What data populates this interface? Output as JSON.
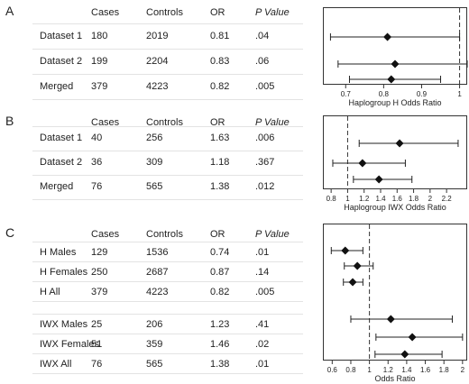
{
  "panels": [
    {
      "letter": "A",
      "headers": [
        "Cases",
        "Controls",
        "OR",
        "P Value"
      ],
      "rows": [
        {
          "label": "Dataset 1",
          "cases": "180",
          "controls": "2019",
          "or": "0.81",
          "p": ".04"
        },
        {
          "label": "Dataset 2",
          "cases": "199",
          "controls": "2204",
          "or": "0.83",
          "p": ".06"
        },
        {
          "label": "Merged",
          "cases": "379",
          "controls": "4223",
          "or": "0.82",
          "p": ".005"
        }
      ]
    },
    {
      "letter": "B",
      "headers": [
        "Cases",
        "Controls",
        "OR",
        "P Value"
      ],
      "rows": [
        {
          "label": "Dataset 1",
          "cases": "40",
          "controls": "256",
          "or": "1.63",
          "p": ".006"
        },
        {
          "label": "Dataset 2",
          "cases": "36",
          "controls": "309",
          "or": "1.18",
          "p": ".367"
        },
        {
          "label": "Merged",
          "cases": "76",
          "controls": "565",
          "or": "1.38",
          "p": ".012"
        }
      ]
    },
    {
      "letter": "C",
      "headers": [
        "Cases",
        "Controls",
        "OR",
        "P Value"
      ],
      "rows": [
        {
          "label": "H Males",
          "cases": "129",
          "controls": "1536",
          "or": "0.74",
          "p": ".01"
        },
        {
          "label": "H Females",
          "cases": "250",
          "controls": "2687",
          "or": "0.87",
          "p": ".14"
        },
        {
          "label": "H All",
          "cases": "379",
          "controls": "4223",
          "or": "0.82",
          "p": ".005"
        },
        {
          "label": "IWX Males",
          "cases": "25",
          "controls": "206",
          "or": "1.23",
          "p": ".41"
        },
        {
          "label": "IWX Females",
          "cases": "51",
          "controls": "359",
          "or": "1.46",
          "p": ".02"
        },
        {
          "label": "IWX All",
          "cases": "76",
          "controls": "565",
          "or": "1.38",
          "p": ".01"
        }
      ]
    }
  ],
  "chart_data": [
    {
      "type": "scatter",
      "xlabel": "Haplogroup H Odds Ratio",
      "xlim": [
        0.64,
        1.02
      ],
      "ticks": [
        0.7,
        0.8,
        0.9,
        1
      ],
      "tick_labels": [
        "0.7",
        "0.8",
        "0.9",
        "1"
      ],
      "reference_line": 1,
      "points": [
        {
          "or": 0.81,
          "low": 0.66,
          "high": 1.0
        },
        {
          "or": 0.83,
          "low": 0.68,
          "high": 1.02
        },
        {
          "or": 0.82,
          "low": 0.71,
          "high": 0.95
        }
      ]
    },
    {
      "type": "scatter",
      "xlabel": "Haplogroup IWX Odds Ratio",
      "xlim": [
        0.7,
        2.45
      ],
      "ticks": [
        0.8,
        1,
        1.2,
        1.4,
        1.6,
        1.8,
        2,
        2.2
      ],
      "tick_labels": [
        "0.8",
        "1",
        "1.2",
        "1.4",
        "1.6",
        "1.8",
        "2",
        "2.2"
      ],
      "reference_line": 1,
      "points": [
        {
          "or": 1.63,
          "low": 1.14,
          "high": 2.34
        },
        {
          "or": 1.18,
          "low": 0.82,
          "high": 1.7
        },
        {
          "or": 1.38,
          "low": 1.07,
          "high": 1.78
        }
      ]
    },
    {
      "type": "scatter",
      "xlabel": "Odds Ratio",
      "xlim": [
        0.5,
        2.05
      ],
      "ticks": [
        0.6,
        0.8,
        1,
        1.2,
        1.4,
        1.6,
        1.8,
        2
      ],
      "tick_labels": [
        "0.6",
        "0.8",
        "1",
        "1.2",
        "1.4",
        "1.6",
        "1.8",
        "2"
      ],
      "reference_line": 1,
      "points": [
        {
          "or": 0.74,
          "low": 0.59,
          "high": 0.93
        },
        {
          "or": 0.87,
          "low": 0.73,
          "high": 1.04
        },
        {
          "or": 0.82,
          "low": 0.72,
          "high": 0.93
        },
        {
          "or": 1.23,
          "low": 0.8,
          "high": 1.89
        },
        {
          "or": 1.46,
          "low": 1.07,
          "high": 2.0
        },
        {
          "or": 1.38,
          "low": 1.06,
          "high": 1.78
        }
      ]
    }
  ]
}
